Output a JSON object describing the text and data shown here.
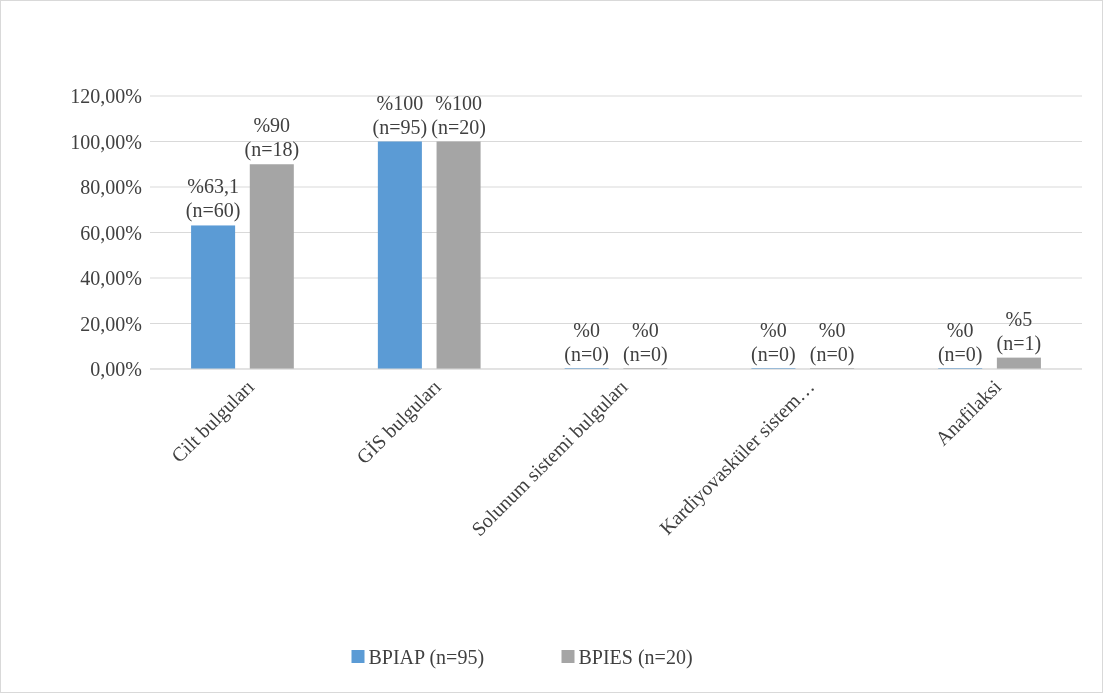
{
  "chart_data": {
    "type": "bar",
    "categories": [
      "Cilt bulguları",
      "GİS bulguları",
      "Solunum sistemi bulguları",
      "Kardiyovasküler sistem…",
      "Anafilaksi"
    ],
    "series": [
      {
        "name": "BPIAP (n=95)",
        "color": "#5b9bd5",
        "values": [
          63.1,
          100,
          0,
          0,
          0
        ],
        "value_labels": [
          "%63,1\n(n=60)",
          "%100\n(n=95)",
          "%0\n(n=0)",
          "%0\n(n=0)",
          "%0\n(n=0)"
        ]
      },
      {
        "name": "BPIES (n=20)",
        "color": "#a5a5a5",
        "values": [
          90,
          100,
          0,
          0,
          5
        ],
        "value_labels": [
          "%90\n(n=18)",
          "%100\n(n=20)",
          "%0\n(n=0)",
          "%0\n(n=0)",
          "%5\n(n=1)"
        ]
      }
    ],
    "ylim": [
      0,
      120
    ],
    "yticks": [
      {
        "value": 0,
        "label": "0,00%"
      },
      {
        "value": 20,
        "label": "20,00%"
      },
      {
        "value": 40,
        "label": "40,00%"
      },
      {
        "value": 60,
        "label": "60,00%"
      },
      {
        "value": 80,
        "label": "80,00%"
      },
      {
        "value": 100,
        "label": "100,00%"
      },
      {
        "value": 120,
        "label": "120,00%"
      }
    ],
    "grid": "y",
    "legend": "bottom"
  }
}
